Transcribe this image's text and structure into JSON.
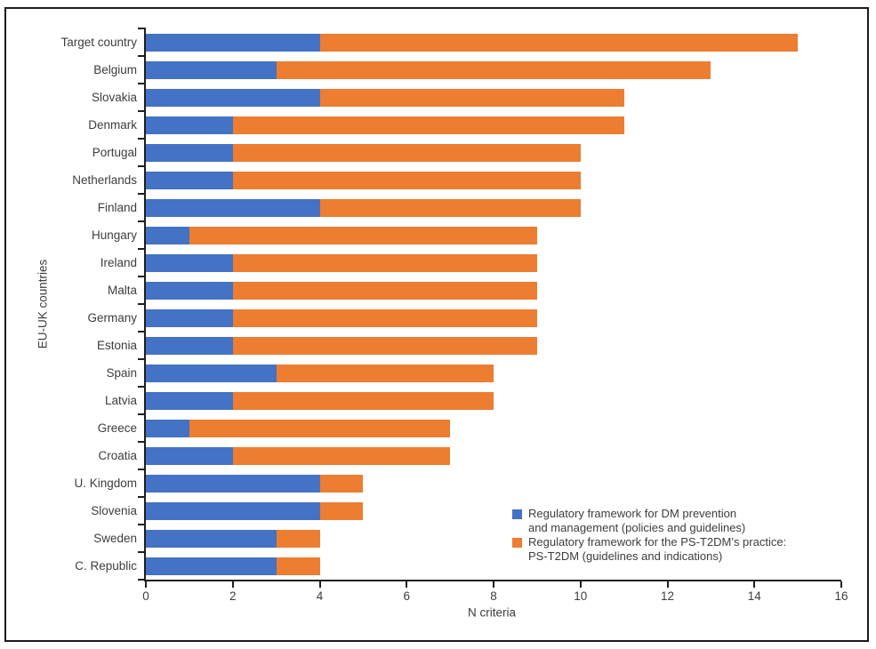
{
  "colors": {
    "series_blue": "#4472C4",
    "series_orange": "#ED7D31",
    "axis_line": "#1f1f1f",
    "text": "#3d3d3d",
    "figure_border": "#1a1a1a",
    "background": "#ffffff"
  },
  "chart_data": {
    "type": "bar",
    "orientation": "horizontal",
    "stacked": true,
    "title": "",
    "xlabel": "N criteria",
    "ylabel": "EU-UK countries",
    "xlim": [
      0,
      16
    ],
    "xticks": [
      0,
      2,
      4,
      6,
      8,
      10,
      12,
      14,
      16
    ],
    "grid": false,
    "categories": [
      "Target country",
      "Belgium",
      "Slovakia",
      "Denmark",
      "Portugal",
      "Netherlands",
      "Finland",
      "Hungary",
      "Ireland",
      "Malta",
      "Germany",
      "Estonia",
      "Spain",
      "Latvia",
      "Greece",
      "Croatia",
      "U. Kingdom",
      "Slovenia",
      "Sweden",
      "C. Republic"
    ],
    "series": [
      {
        "name": "Regulatory framework for DM prevention and management (policies and guidelines)",
        "color": "#4472C4",
        "values": [
          4,
          3,
          4,
          2,
          2,
          2,
          4,
          1,
          2,
          2,
          2,
          2,
          3,
          2,
          1,
          2,
          4,
          4,
          3,
          3
        ]
      },
      {
        "name": "Regulatory framework for the PS-T2DM’s practice: PS-T2DM (guidelines and indications)",
        "color": "#ED7D31",
        "values": [
          11,
          10,
          7,
          9,
          8,
          8,
          6,
          8,
          7,
          7,
          7,
          7,
          5,
          6,
          6,
          5,
          1,
          1,
          1,
          1
        ]
      }
    ],
    "totals": [
      15,
      13,
      11,
      11,
      10,
      10,
      10,
      9,
      9,
      9,
      9,
      9,
      8,
      8,
      7,
      7,
      5,
      5,
      4,
      4
    ],
    "legend": {
      "position": "inside-bottom-right",
      "entries": [
        {
          "color": "#4472C4",
          "lines": [
            "Regulatory framework for DM prevention",
            "and management (policies and guidelines)"
          ]
        },
        {
          "color": "#ED7D31",
          "lines": [
            "Regulatory framework for the PS-T2DM’s practice:",
            "PS-T2DM (guidelines and indications)"
          ]
        }
      ]
    }
  }
}
